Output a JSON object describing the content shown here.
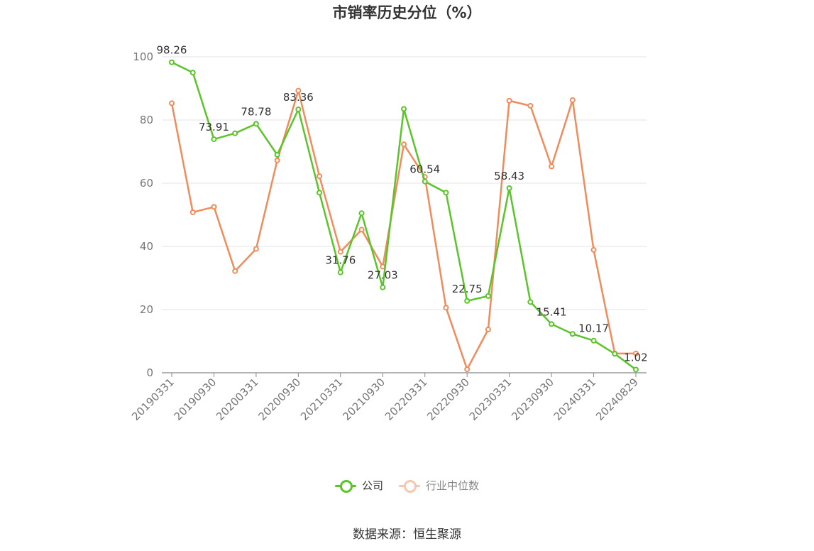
{
  "chart_data": {
    "type": "line",
    "title": "市销率历史分位（%）",
    "x": [
      "20190331",
      "20190630",
      "20190930",
      "20191231",
      "20200331",
      "20200630",
      "20200930",
      "20201231",
      "20210331",
      "20210630",
      "20210930",
      "20211231",
      "20220331",
      "20220630",
      "20220930",
      "20221231",
      "20230331",
      "20230630",
      "20230930",
      "20231231",
      "20240331",
      "20240630",
      "20240829"
    ],
    "x_tick_labels": [
      "20190331",
      "20190930",
      "20200331",
      "20200930",
      "20210331",
      "20210930",
      "20220331",
      "20220930",
      "20230331",
      "20230930",
      "20240331",
      "20240829"
    ],
    "ylim": [
      0,
      100
    ],
    "y_ticks": [
      0,
      20,
      40,
      60,
      80,
      100
    ],
    "grid": true,
    "legend_position": "bottom",
    "series": [
      {
        "name": "公司",
        "color": "#5ac42a",
        "values": [
          98.26,
          95.0,
          73.91,
          75.8,
          78.78,
          69.0,
          83.36,
          57.0,
          31.76,
          50.5,
          27.03,
          83.5,
          60.54,
          57.0,
          22.75,
          24.3,
          58.43,
          22.4,
          15.41,
          12.3,
          10.17,
          6.0,
          1.02
        ],
        "labeled_indices": [
          0,
          2,
          4,
          6,
          8,
          10,
          12,
          14,
          16,
          18,
          20,
          22
        ]
      },
      {
        "name": "行业中位数",
        "color": "#f28b5b",
        "values": [
          85.3,
          50.8,
          52.5,
          32.2,
          39.2,
          67.2,
          89.3,
          62.2,
          38.3,
          45.3,
          33.6,
          72.3,
          62.0,
          20.6,
          1.1,
          13.7,
          86.1,
          84.5,
          65.3,
          86.3,
          38.9,
          6.1,
          6.1
        ]
      }
    ],
    "source": "数据来源：恒生聚源"
  }
}
